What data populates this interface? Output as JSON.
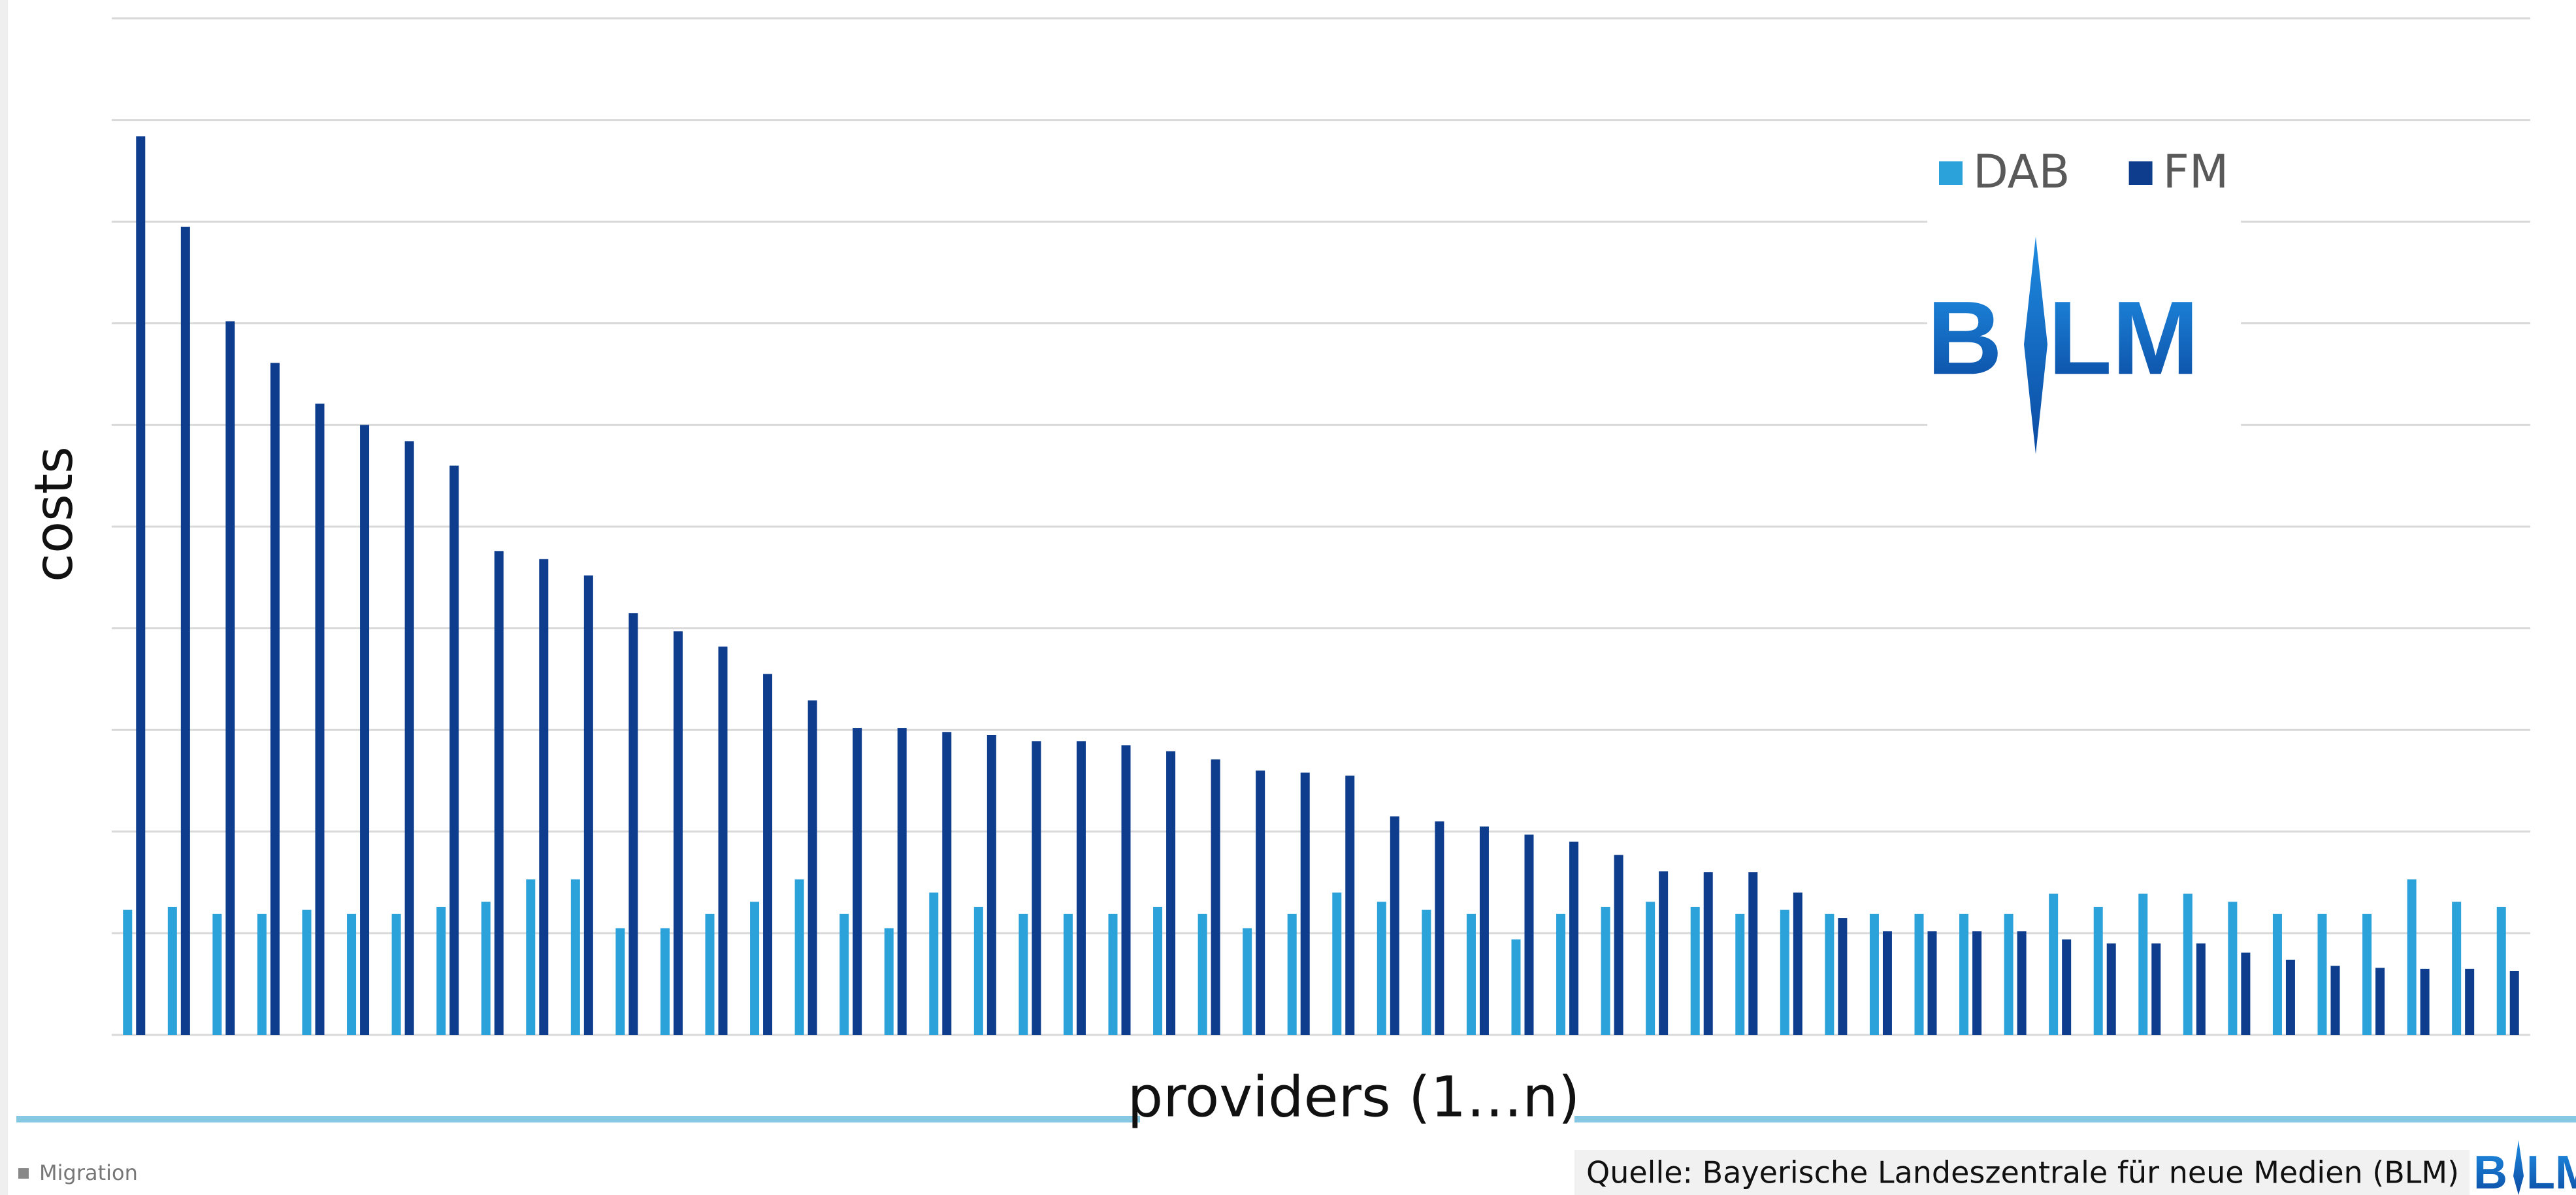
{
  "chart_data": {
    "type": "bar",
    "ylabel": "costs",
    "xlabel": "providers (1…n)",
    "categories": [
      null,
      null,
      null,
      null,
      null,
      null,
      null,
      null,
      null,
      null,
      null,
      null,
      null,
      null,
      null,
      null,
      null,
      null,
      null,
      null,
      null,
      null,
      null,
      null,
      null,
      null,
      null,
      null,
      null,
      null,
      null,
      null,
      null,
      null,
      null,
      null,
      null,
      null,
      null,
      null,
      null,
      null,
      null,
      null,
      null,
      null,
      null,
      null,
      null,
      null,
      null,
      null,
      null,
      null
    ],
    "series": [
      {
        "name": "DAB",
        "color": "#2ba2da",
        "values": [
          1.23,
          1.26,
          1.19,
          1.19,
          1.23,
          1.19,
          1.19,
          1.26,
          1.31,
          1.53,
          1.53,
          1.05,
          1.05,
          1.19,
          1.31,
          1.53,
          1.19,
          1.05,
          1.4,
          1.26,
          1.19,
          1.19,
          1.19,
          1.26,
          1.19,
          1.05,
          1.19,
          1.4,
          1.31,
          1.23,
          1.19,
          0.94,
          1.19,
          1.26,
          1.31,
          1.26,
          1.19,
          1.23,
          1.19,
          1.19,
          1.19,
          1.19,
          1.19,
          1.39,
          1.26,
          1.39,
          1.39,
          1.31,
          1.19,
          1.19,
          1.19,
          1.53,
          1.31,
          1.26
        ]
      },
      {
        "name": "FM",
        "color": "#0e3d8e",
        "values": [
          8.84,
          7.95,
          7.02,
          6.61,
          6.21,
          6.0,
          5.84,
          5.6,
          4.76,
          4.68,
          4.52,
          4.15,
          3.97,
          3.82,
          3.55,
          3.29,
          3.02,
          3.02,
          2.98,
          2.95,
          2.89,
          2.89,
          2.85,
          2.79,
          2.71,
          2.6,
          2.58,
          2.55,
          2.15,
          2.1,
          2.05,
          1.97,
          1.9,
          1.77,
          1.61,
          1.6,
          1.6,
          1.4,
          1.15,
          1.02,
          1.02,
          1.02,
          1.02,
          0.94,
          0.9,
          0.9,
          0.9,
          0.81,
          0.74,
          0.68,
          0.66,
          0.65,
          0.65,
          0.63
        ]
      }
    ],
    "ylim": [
      0,
      10
    ],
    "yticks": [
      0,
      1,
      2,
      3,
      4,
      5,
      6,
      7,
      8,
      9,
      10
    ],
    "grid": true,
    "legend": "upper right"
  },
  "logo": {
    "left": "B",
    "right": "LM"
  },
  "footer": {
    "section": "Migration",
    "source": "Quelle: Bayerische Landeszentrale für neue Medien (BLM)"
  }
}
